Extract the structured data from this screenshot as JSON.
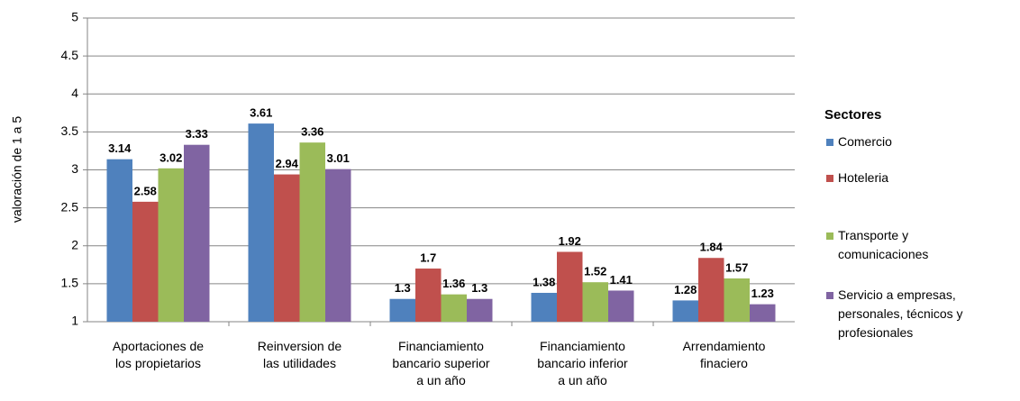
{
  "chart_data": {
    "type": "bar",
    "categories": [
      "Aportaciones de\nlos propietarios",
      "Reinversion de\nlas utilidades",
      "Financiamiento\nbancario superior\na un año",
      "Financiamiento\nbancario inferior\na un año",
      "Arrendamiento\nfinaciero"
    ],
    "series": [
      {
        "name": "Comercio",
        "color": "#4f81bd",
        "values": [
          3.14,
          3.61,
          1.3,
          1.38,
          1.28
        ]
      },
      {
        "name": "Hoteleria",
        "color": "#c0504d",
        "values": [
          2.58,
          2.94,
          1.7,
          1.92,
          1.84
        ]
      },
      {
        "name": "Transporte y\ncomunicaciones",
        "color": "#9bbb59",
        "values": [
          3.02,
          3.36,
          1.36,
          1.52,
          1.57
        ]
      },
      {
        "name": "Servicio a empresas,\npersonales, técnicos y\nprofesionales",
        "color": "#8064a2",
        "values": [
          3.33,
          3.01,
          1.3,
          1.41,
          1.23
        ]
      }
    ],
    "y_label": "valoración de 1 a 5",
    "legend_title": "Sectores",
    "ylim": [
      1,
      5
    ],
    "yticks": [
      1,
      1.5,
      2,
      2.5,
      3,
      3.5,
      4,
      4.5,
      5
    ],
    "grid": true,
    "legend": "right"
  }
}
